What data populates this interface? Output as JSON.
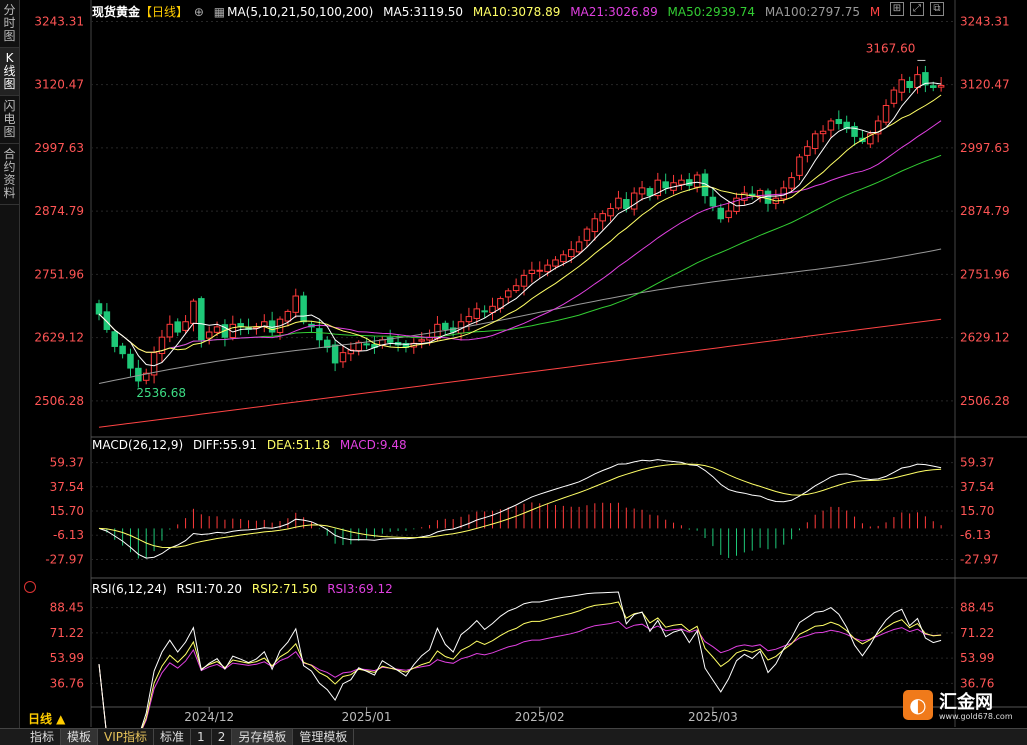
{
  "sidebar": {
    "tabs": [
      "分时图",
      "K线图",
      "闪电图",
      "合约资料"
    ],
    "active": 1
  },
  "main_legend": {
    "symbol": "现货黄金",
    "period": "【日线】",
    "ma_params": "MA(5,10,21,50,100,200)",
    "ma5": "MA5:3119.50",
    "ma10": "MA10:3078.89",
    "ma21": "MA21:3026.89",
    "ma50": "MA50:2939.74",
    "ma100": "MA100:2797.75",
    "ma_more": "M"
  },
  "macd_legend": {
    "params": "MACD(26,12,9)",
    "diff": "DIFF:55.91",
    "dea": "DEA:51.18",
    "macd": "MACD:9.48"
  },
  "rsi_legend": {
    "params": "RSI(6,12,24)",
    "rsi1": "RSI1:70.20",
    "rsi2": "RSI2:71.50",
    "rsi3": "RSI3:69.12"
  },
  "bottom_tabs": [
    "指标",
    "模板",
    "VIP指标",
    "标准",
    "1",
    "2",
    "另存模板",
    "管理模板"
  ],
  "period_button": "日线 ▲",
  "logo": {
    "name": "汇金网",
    "url": "www.gold678.com"
  },
  "colors": {
    "up": "#ff3b3b",
    "down": "#1ec878",
    "ma5": "#ffffff",
    "ma10": "#ffff66",
    "ma21": "#e040e0",
    "ma50": "#33cc33",
    "ma100": "#999999",
    "ma200": "#ff4444",
    "diff": "#ffffff",
    "dea": "#ffff66"
  },
  "chart_data": [
    {
      "type": "candlestick",
      "title": "现货黄金 日线",
      "y_ticks": [
        3243.31,
        3120.47,
        2997.63,
        2874.79,
        2751.96,
        2629.12,
        2506.28
      ],
      "ylim": [
        2440,
        3250
      ],
      "x_ticks": [
        "2024/12",
        "2025/01",
        "2025/02",
        "2025/03"
      ],
      "annotations": [
        {
          "label": "3167.60",
          "value": 3167.6
        },
        {
          "label": "2536.68",
          "value": 2536.68
        }
      ],
      "closes": [
        2675,
        2645,
        2612,
        2598,
        2570,
        2545,
        2560,
        2600,
        2630,
        2655,
        2640,
        2660,
        2700,
        2625,
        2640,
        2650,
        2630,
        2655,
        2650,
        2645,
        2650,
        2660,
        2640,
        2665,
        2680,
        2710,
        2660,
        2650,
        2625,
        2610,
        2580,
        2600,
        2605,
        2620,
        2615,
        2610,
        2625,
        2620,
        2615,
        2610,
        2618,
        2625,
        2630,
        2655,
        2645,
        2640,
        2660,
        2670,
        2685,
        2680,
        2690,
        2705,
        2720,
        2730,
        2750,
        2760,
        2760,
        2770,
        2780,
        2790,
        2800,
        2815,
        2840,
        2860,
        2870,
        2880,
        2900,
        2880,
        2910,
        2920,
        2905,
        2935,
        2920,
        2930,
        2935,
        2925,
        2945,
        2905,
        2885,
        2860,
        2875,
        2900,
        2910,
        2905,
        2915,
        2890,
        2900,
        2920,
        2940,
        2980,
        3000,
        3025,
        3030,
        3050,
        3045,
        3035,
        3020,
        3010,
        3025,
        3050,
        3080,
        3110,
        3130,
        3115,
        3140,
        3120,
        3115,
        3119
      ],
      "series": [
        {
          "name": "MA5",
          "values": [
            3119.5
          ]
        },
        {
          "name": "MA10",
          "values": [
            3078.89
          ]
        },
        {
          "name": "MA21",
          "values": [
            3026.89
          ]
        },
        {
          "name": "MA50",
          "values": [
            2939.74
          ]
        },
        {
          "name": "MA100",
          "values": [
            2797.75
          ]
        },
        {
          "name": "MA200",
          "values": [
            2665
          ]
        }
      ]
    },
    {
      "type": "macd",
      "y_ticks": [
        59.37,
        37.54,
        15.7,
        -6.13,
        -27.97
      ],
      "ylim": [
        -42,
        68
      ],
      "series": [
        {
          "name": "DIFF",
          "values": [
            55.91
          ]
        },
        {
          "name": "DEA",
          "values": [
            51.18
          ]
        },
        {
          "name": "MACD",
          "values": [
            9.48
          ]
        }
      ]
    },
    {
      "type": "rsi",
      "y_ticks": [
        88.45,
        71.22,
        53.99,
        36.76
      ],
      "ylim": [
        22,
        95
      ],
      "series": [
        {
          "name": "RSI1",
          "values": [
            70.2
          ]
        },
        {
          "name": "RSI2",
          "values": [
            71.5
          ]
        },
        {
          "name": "RSI3",
          "values": [
            69.12
          ]
        }
      ]
    }
  ]
}
